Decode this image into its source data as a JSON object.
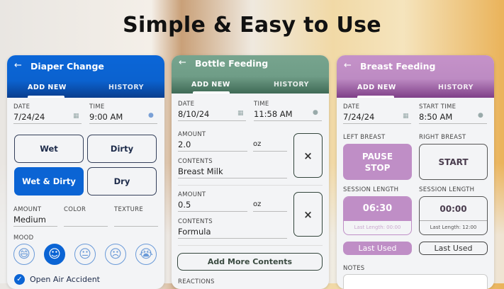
{
  "headline": "Simple & Easy to Use",
  "colors": {
    "diaper": "#0b64d4",
    "bottle": "#6f9d87",
    "breast": "#bf8ec6"
  },
  "diaper": {
    "title": "Diaper Change",
    "tabs": [
      "ADD NEW",
      "HISTORY"
    ],
    "date_label": "DATE",
    "date": "7/24/24",
    "time_label": "TIME",
    "time": "9:00 AM",
    "types": [
      "Wet",
      "Dirty",
      "Wet & Dirty",
      "Dry"
    ],
    "selected_type": "Wet & Dirty",
    "amount_label": "AMOUNT",
    "amount": "Medium",
    "color_label": "COLOR",
    "color": "",
    "texture_label": "TEXTURE",
    "texture": "",
    "mood_label": "MOOD",
    "moods": [
      "laughing-face-icon",
      "smiling-face-icon",
      "neutral-face-icon",
      "sad-face-icon",
      "crying-face-icon"
    ],
    "selected_mood": 1,
    "open_air_label": "Open Air Accident",
    "open_air_checked": true
  },
  "bottle": {
    "title": "Bottle Feeding",
    "tabs": [
      "ADD NEW",
      "HISTORY"
    ],
    "date_label": "DATE",
    "date": "8/10/24",
    "time_label": "TIME",
    "time": "11:58 AM",
    "entries": [
      {
        "amount_label": "AMOUNT",
        "amount": "2.0",
        "unit": "oz",
        "contents_label": "CONTENTS",
        "contents": "Breast Milk",
        "remove": "×"
      },
      {
        "amount_label": "AMOUNT",
        "amount": "0.5",
        "unit": "oz",
        "contents_label": "CONTENTS",
        "contents": "Formula",
        "remove": "×"
      }
    ],
    "add_more": "Add More Contents",
    "reactions_label": "REACTIONS"
  },
  "breast": {
    "title": "Breast Feeding",
    "tabs": [
      "ADD NEW",
      "HISTORY"
    ],
    "date_label": "DATE",
    "date": "7/24/24",
    "time_label": "START TIME",
    "time": "8:50 AM",
    "left_label": "LEFT BREAST",
    "left_btn": [
      "PAUSE",
      "STOP"
    ],
    "right_label": "RIGHT BREAST",
    "right_btn": "START",
    "session_label": "SESSION LENGTH",
    "left_timer": "06:30",
    "left_last": "Last Length: 00:00",
    "right_timer": "00:00",
    "right_last": "Last Length: 12:00",
    "last_used": "Last Used",
    "notes_label": "NOTES"
  }
}
